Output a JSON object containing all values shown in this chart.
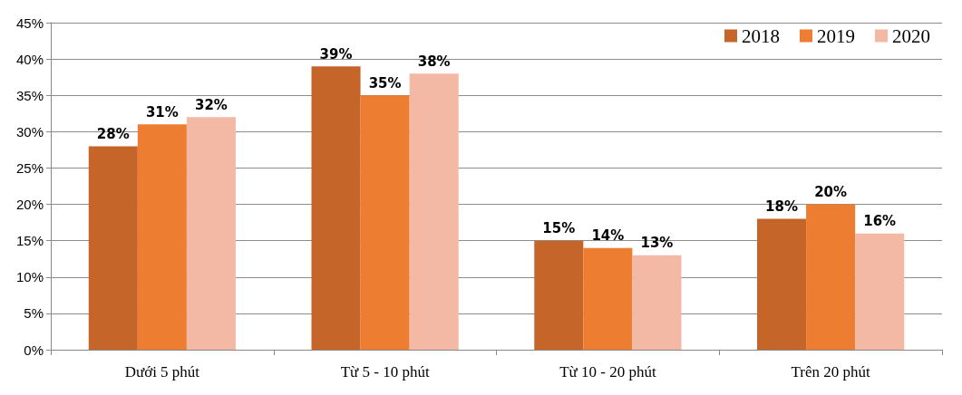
{
  "chart_data": {
    "type": "bar",
    "categories": [
      "Dưới 5 phút",
      "Từ 5 - 10 phút",
      "Từ 10 - 20 phút",
      "Trên 20 phút"
    ],
    "series": [
      {
        "name": "2018",
        "color": "#c5652a",
        "values": [
          28,
          39,
          15,
          18
        ],
        "value_labels": [
          "28%",
          "39%",
          "15%",
          "18%"
        ]
      },
      {
        "name": "2019",
        "color": "#ed7d31",
        "values": [
          31,
          35,
          14,
          20
        ],
        "value_labels": [
          "31%",
          "35%",
          "14%",
          "20%"
        ]
      },
      {
        "name": "2020",
        "color": "#f4b9a4",
        "values": [
          32,
          38,
          13,
          16
        ],
        "value_labels": [
          "32%",
          "38%",
          "13%",
          "16%"
        ]
      }
    ],
    "ylim": [
      0,
      45
    ],
    "yticks": [
      {
        "value": 0,
        "label": "0%"
      },
      {
        "value": 5,
        "label": "5%"
      },
      {
        "value": 10,
        "label": "10%"
      },
      {
        "value": 15,
        "label": "15%"
      },
      {
        "value": 20,
        "label": "20%"
      },
      {
        "value": 25,
        "label": "25%"
      },
      {
        "value": 30,
        "label": "30%"
      },
      {
        "value": 35,
        "label": "35%"
      },
      {
        "value": 40,
        "label": "40%"
      },
      {
        "value": 45,
        "label": "45%"
      }
    ],
    "grid": "y",
    "legend": "top right"
  }
}
